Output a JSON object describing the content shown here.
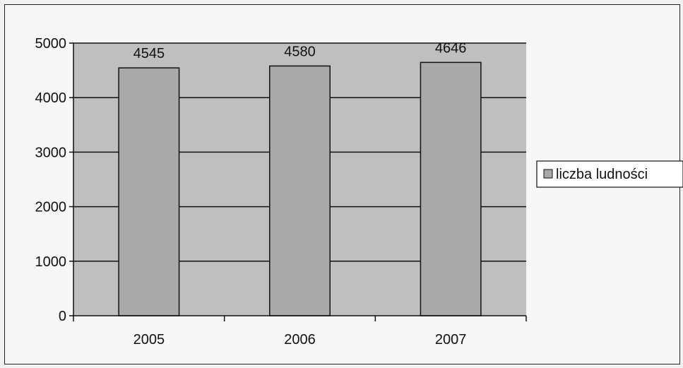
{
  "chart_data": {
    "type": "bar",
    "categories": [
      "2005",
      "2006",
      "2007"
    ],
    "series": [
      {
        "name": "liczba ludności",
        "values": [
          4545,
          4580,
          4646
        ]
      }
    ],
    "data_labels": [
      "4545",
      "4580",
      "4646"
    ],
    "y_ticks": [
      "0",
      "1000",
      "2000",
      "3000",
      "4000",
      "5000"
    ],
    "ylim": [
      0,
      5000
    ],
    "grid": true,
    "legend_position": "right",
    "colors": {
      "plot_bg": "#bfbfbf",
      "bar": "#a9a9a9",
      "gridline": "#111111"
    }
  }
}
